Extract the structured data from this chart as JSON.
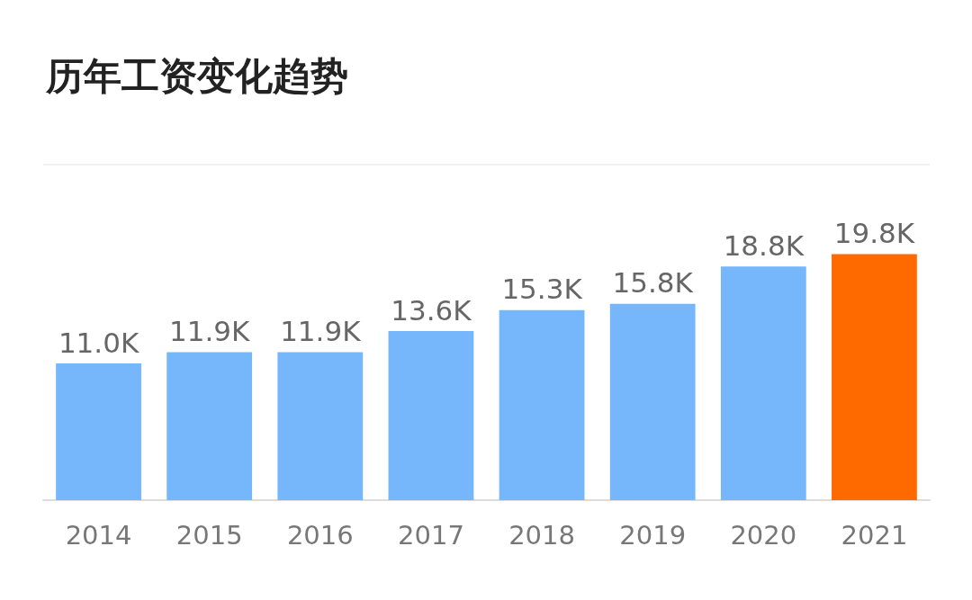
{
  "chart_data": {
    "type": "bar",
    "title": "历年工资变化趋势",
    "categories": [
      "2014",
      "2015",
      "2016",
      "2017",
      "2018",
      "2019",
      "2020",
      "2021"
    ],
    "values": [
      11.0,
      11.9,
      11.9,
      13.6,
      15.3,
      15.8,
      18.8,
      19.8
    ],
    "value_labels": [
      "11.0K",
      "11.9K",
      "11.9K",
      "13.6K",
      "15.3K",
      "15.8K",
      "18.8K",
      "19.8K"
    ],
    "colors": [
      "#76b7fc",
      "#76b7fc",
      "#76b7fc",
      "#76b7fc",
      "#76b7fc",
      "#76b7fc",
      "#76b7fc",
      "#ff6a00"
    ],
    "ylim": [
      0,
      27
    ],
    "grid": false
  }
}
